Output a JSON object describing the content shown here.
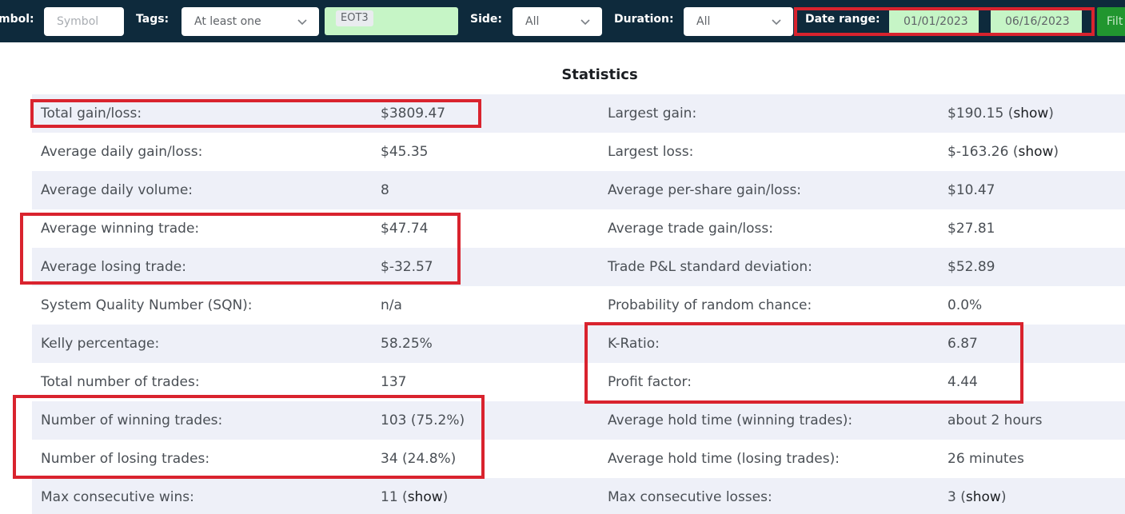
{
  "filters": {
    "symbol": {
      "label": "mbol:",
      "placeholder": "Symbol"
    },
    "tags": {
      "label": "Tags:",
      "mode": "At least one",
      "chips": [
        "EOT3"
      ]
    },
    "side": {
      "label": "Side:",
      "value": "All"
    },
    "duration": {
      "label": "Duration:",
      "value": "All"
    },
    "date_range": {
      "label": "Date range:",
      "start": "01/01/2023",
      "end": "06/16/2023"
    },
    "filter_button": "Filt"
  },
  "statistics": {
    "title": "Statistics",
    "show_label": "show",
    "rows": [
      {
        "left_label": "Total gain/loss:",
        "left_value": "$3809.47",
        "right_label": "Largest gain:",
        "right_value": "$190.15"
      },
      {
        "left_label": "Average daily gain/loss:",
        "left_value": "$45.35",
        "right_label": "Largest loss:",
        "right_value": "$-163.26"
      },
      {
        "left_label": "Average daily volume:",
        "left_value": "8",
        "right_label": "Average per-share gain/loss:",
        "right_value": "$10.47"
      },
      {
        "left_label": "Average winning trade:",
        "left_value": "$47.74",
        "right_label": "Average trade gain/loss:",
        "right_value": "$27.81"
      },
      {
        "left_label": "Average losing trade:",
        "left_value": "$-32.57",
        "right_label": "Trade P&L standard deviation:",
        "right_value": "$52.89"
      },
      {
        "left_label": "System Quality Number (SQN):",
        "left_value": "n/a",
        "right_label": "Probability of random chance:",
        "right_value": "0.0%"
      },
      {
        "left_label": "Kelly percentage:",
        "left_value": "58.25%",
        "right_label": "K-Ratio:",
        "right_value": "6.87"
      },
      {
        "left_label": "Total number of trades:",
        "left_value": "137",
        "right_label": "Profit factor:",
        "right_value": "4.44"
      },
      {
        "left_label": "Number of winning trades:",
        "left_value": "103 (75.2%)",
        "right_label": "Average hold time (winning trades):",
        "right_value": "about 2 hours"
      },
      {
        "left_label": "Number of losing trades:",
        "left_value": "34 (24.8%)",
        "right_label": "Average hold time (losing trades):",
        "right_value": "26 minutes"
      },
      {
        "left_label": "Max consecutive wins:",
        "left_value": "11",
        "right_label": "Max consecutive losses:",
        "right_value": "3"
      }
    ]
  },
  "colors": {
    "bar_background": "#0e2a3c",
    "highlight_border": "#d9232e",
    "row_shade": "#eef0f8",
    "date_field_bg": "#c6f5c6",
    "filter_button_bg": "#21962f"
  }
}
